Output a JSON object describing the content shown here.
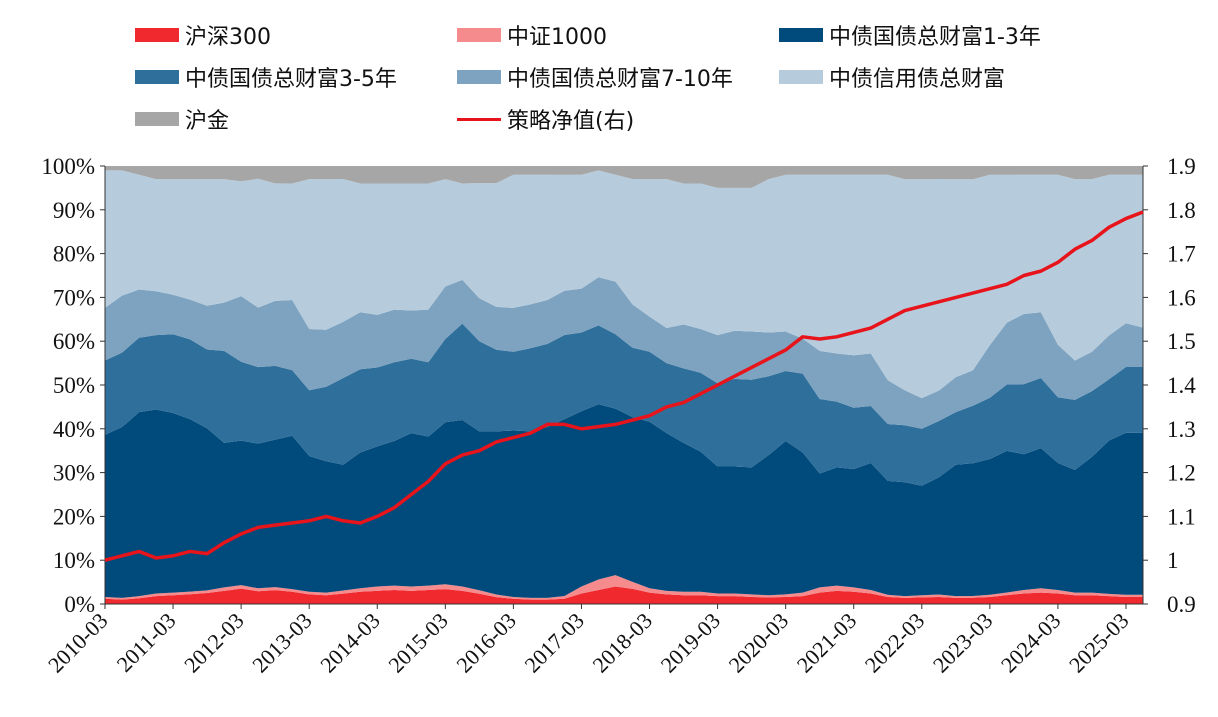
{
  "chart_data": {
    "type": "area",
    "stacked": true,
    "percent": true,
    "left_axis": {
      "ticks": [
        "0%",
        "10%",
        "20%",
        "30%",
        "40%",
        "50%",
        "60%",
        "70%",
        "80%",
        "90%",
        "100%"
      ],
      "ylim": [
        0,
        100
      ]
    },
    "right_axis": {
      "ticks": [
        "0.9",
        "1",
        "1.1",
        "1.2",
        "1.3",
        "1.4",
        "1.5",
        "1.6",
        "1.7",
        "1.8",
        "1.9"
      ],
      "ylim": [
        0.9,
        1.9
      ]
    },
    "x_ticks": [
      "2010-03",
      "2011-03",
      "2012-03",
      "2013-03",
      "2014-03",
      "2015-03",
      "2016-03",
      "2017-03",
      "2018-03",
      "2019-03",
      "2020-03",
      "2021-03",
      "2022-03",
      "2023-03",
      "2024-03",
      "2025-03"
    ],
    "x_range": [
      2010.167,
      2025.417
    ],
    "grid": false,
    "legend_position": "top",
    "x": [
      2010.167,
      2010.417,
      2010.667,
      2010.917,
      2011.167,
      2011.417,
      2011.667,
      2011.917,
      2012.167,
      2012.417,
      2012.667,
      2012.917,
      2013.167,
      2013.417,
      2013.667,
      2013.917,
      2014.167,
      2014.417,
      2014.667,
      2014.917,
      2015.167,
      2015.417,
      2015.667,
      2015.917,
      2016.167,
      2016.417,
      2016.667,
      2016.917,
      2017.167,
      2017.417,
      2017.667,
      2017.917,
      2018.167,
      2018.417,
      2018.667,
      2018.917,
      2019.167,
      2019.417,
      2019.667,
      2019.917,
      2020.167,
      2020.417,
      2020.667,
      2020.917,
      2021.167,
      2021.417,
      2021.667,
      2021.917,
      2022.167,
      2022.417,
      2022.667,
      2022.917,
      2023.167,
      2023.417,
      2023.667,
      2023.917,
      2024.167,
      2024.417,
      2024.667,
      2024.917,
      2025.167,
      2025.417
    ],
    "series": [
      {
        "name": "沪深300",
        "color": "#f0292e",
        "kind": "area",
        "values": [
          1.2,
          1.0,
          1.3,
          1.8,
          2.0,
          2.2,
          2.5,
          3.0,
          3.5,
          3.0,
          3.2,
          2.8,
          2.2,
          2.0,
          2.4,
          2.8,
          3.0,
          3.2,
          3.0,
          3.2,
          3.4,
          3.0,
          2.4,
          1.6,
          1.2,
          1.0,
          1.0,
          1.2,
          2.4,
          3.2,
          4.0,
          3.5,
          2.6,
          2.2,
          2.0,
          2.0,
          1.8,
          1.8,
          1.6,
          1.5,
          1.6,
          1.8,
          2.6,
          3.0,
          2.8,
          2.4,
          1.6,
          1.4,
          1.5,
          1.6,
          1.4,
          1.4,
          1.6,
          2.0,
          2.4,
          2.6,
          2.4,
          2.0,
          2.0,
          1.8,
          1.6,
          1.6
        ]
      },
      {
        "name": "中证1000",
        "color": "#f58b8d",
        "kind": "area",
        "values": [
          0.4,
          0.4,
          0.5,
          0.6,
          0.6,
          0.6,
          0.6,
          0.8,
          0.8,
          0.7,
          0.7,
          0.6,
          0.6,
          0.6,
          0.7,
          0.8,
          1.0,
          1.0,
          1.0,
          1.0,
          1.1,
          1.0,
          0.8,
          0.6,
          0.4,
          0.4,
          0.4,
          0.6,
          1.6,
          2.4,
          2.6,
          1.6,
          1.0,
          0.8,
          0.8,
          0.8,
          0.6,
          0.6,
          0.6,
          0.5,
          0.6,
          0.8,
          1.2,
          1.2,
          1.0,
          0.8,
          0.5,
          0.4,
          0.5,
          0.6,
          0.4,
          0.4,
          0.5,
          0.6,
          0.8,
          1.0,
          0.8,
          0.6,
          0.6,
          0.5,
          0.5,
          0.5
        ]
      },
      {
        "name": "中债国债总财富1-3年",
        "color": "#004a7c",
        "kind": "area",
        "values": [
          37,
          39,
          42,
          42,
          41,
          39,
          37,
          33,
          33,
          34,
          34,
          35,
          31,
          30,
          29,
          31,
          32,
          33,
          35,
          34,
          37,
          38,
          37,
          38,
          38,
          38,
          39,
          40,
          40,
          40,
          38,
          38,
          38,
          36,
          34,
          32,
          29,
          29,
          29,
          32,
          35,
          32,
          26,
          27,
          27,
          29,
          26,
          26,
          25,
          27,
          30,
          30,
          31,
          32,
          31,
          32,
          29,
          28,
          31,
          35,
          37,
          37
        ]
      },
      {
        "name": "中债国债总财富3-5年",
        "color": "#2f6f9b",
        "kind": "area",
        "values": [
          17,
          17,
          17,
          17,
          18,
          18,
          18,
          21,
          18,
          18,
          17,
          15,
          15,
          17,
          20,
          19,
          18,
          18,
          17,
          17,
          19,
          22,
          21,
          19,
          18,
          19,
          19,
          19,
          18,
          18,
          17,
          16,
          16,
          16,
          17,
          18,
          19,
          20,
          20,
          18,
          16,
          18,
          17,
          15,
          14,
          13,
          13,
          13,
          13,
          13,
          12,
          13,
          14,
          15,
          16,
          16,
          15,
          16,
          15,
          14,
          15,
          15
        ]
      },
      {
        "name": "中债国债总财富7-10年",
        "color": "#7ea3c0",
        "kind": "area",
        "values": [
          12,
          13,
          11,
          10,
          9,
          9,
          10,
          11,
          15,
          14,
          15,
          16,
          14,
          13,
          13,
          13,
          12,
          12,
          11,
          12,
          12,
          10,
          10,
          10,
          10,
          10,
          10,
          10,
          10,
          11,
          12,
          10,
          8,
          8,
          10,
          10,
          11,
          11,
          11,
          10,
          9,
          8,
          11,
          11,
          12,
          12,
          10,
          8,
          7,
          7,
          8,
          8,
          12,
          14,
          16,
          15,
          12,
          9,
          9,
          10,
          10,
          9
        ]
      },
      {
        "name": "中债信用债总财富",
        "color": "#b6ccdd",
        "kind": "area",
        "values": [
          31.4,
          28.6,
          26.2,
          25.6,
          26.4,
          27.2,
          28.9,
          28.2,
          26.2,
          30.3,
          27.1,
          26.6,
          34.2,
          34.4,
          32.9,
          29.4,
          30.0,
          28.8,
          29.0,
          28.8,
          24.5,
          22.0,
          26.8,
          28.8,
          30.4,
          29.6,
          28.6,
          26.2,
          26.0,
          24.4,
          24.4,
          28.9,
          31.4,
          34.0,
          32.2,
          33.2,
          33.6,
          32.6,
          32.8,
          35.0,
          35.8,
          37.4,
          40.2,
          40.8,
          41.2,
          40.8,
          46.9,
          48.2,
          50.0,
          48.8,
          45.2,
          43.2,
          38.9,
          33.4,
          31.8,
          31.4,
          38.8,
          41.4,
          39.4,
          36.7,
          33.9,
          34.9
        ]
      },
      {
        "name": "沪金",
        "color": "#a6a6a6",
        "kind": "area",
        "values": [
          1.0,
          1.0,
          2.0,
          3.0,
          3.0,
          3.0,
          3.0,
          3.0,
          3.5,
          3.0,
          4.0,
          4.0,
          3.0,
          3.0,
          3.0,
          4.0,
          4.0,
          4.0,
          4.0,
          4.0,
          3.0,
          4.0,
          4.0,
          4.0,
          2.0,
          2.0,
          2.0,
          2.0,
          2.0,
          1.0,
          2.0,
          3.0,
          3.0,
          3.0,
          4.0,
          4.0,
          5.0,
          5.0,
          5.0,
          3.0,
          2.0,
          2.0,
          2.0,
          2.0,
          2.0,
          2.0,
          2.0,
          3.0,
          3.0,
          3.0,
          3.0,
          3.0,
          2.0,
          2.0,
          2.0,
          2.0,
          2.0,
          3.0,
          3.0,
          2.0,
          2.0,
          2.0
        ]
      },
      {
        "name": "策略净值(右)",
        "color": "#e8141b",
        "kind": "line",
        "axis": "right",
        "values": [
          1.0,
          1.01,
          1.02,
          1.005,
          1.01,
          1.02,
          1.015,
          1.04,
          1.06,
          1.075,
          1.08,
          1.085,
          1.09,
          1.1,
          1.09,
          1.085,
          1.1,
          1.12,
          1.15,
          1.18,
          1.22,
          1.24,
          1.25,
          1.27,
          1.28,
          1.29,
          1.31,
          1.31,
          1.3,
          1.305,
          1.31,
          1.32,
          1.33,
          1.35,
          1.36,
          1.38,
          1.4,
          1.42,
          1.44,
          1.46,
          1.48,
          1.51,
          1.505,
          1.51,
          1.52,
          1.53,
          1.55,
          1.57,
          1.58,
          1.59,
          1.6,
          1.61,
          1.62,
          1.63,
          1.65,
          1.66,
          1.68,
          1.71,
          1.73,
          1.76,
          1.78,
          1.795
        ]
      }
    ]
  }
}
